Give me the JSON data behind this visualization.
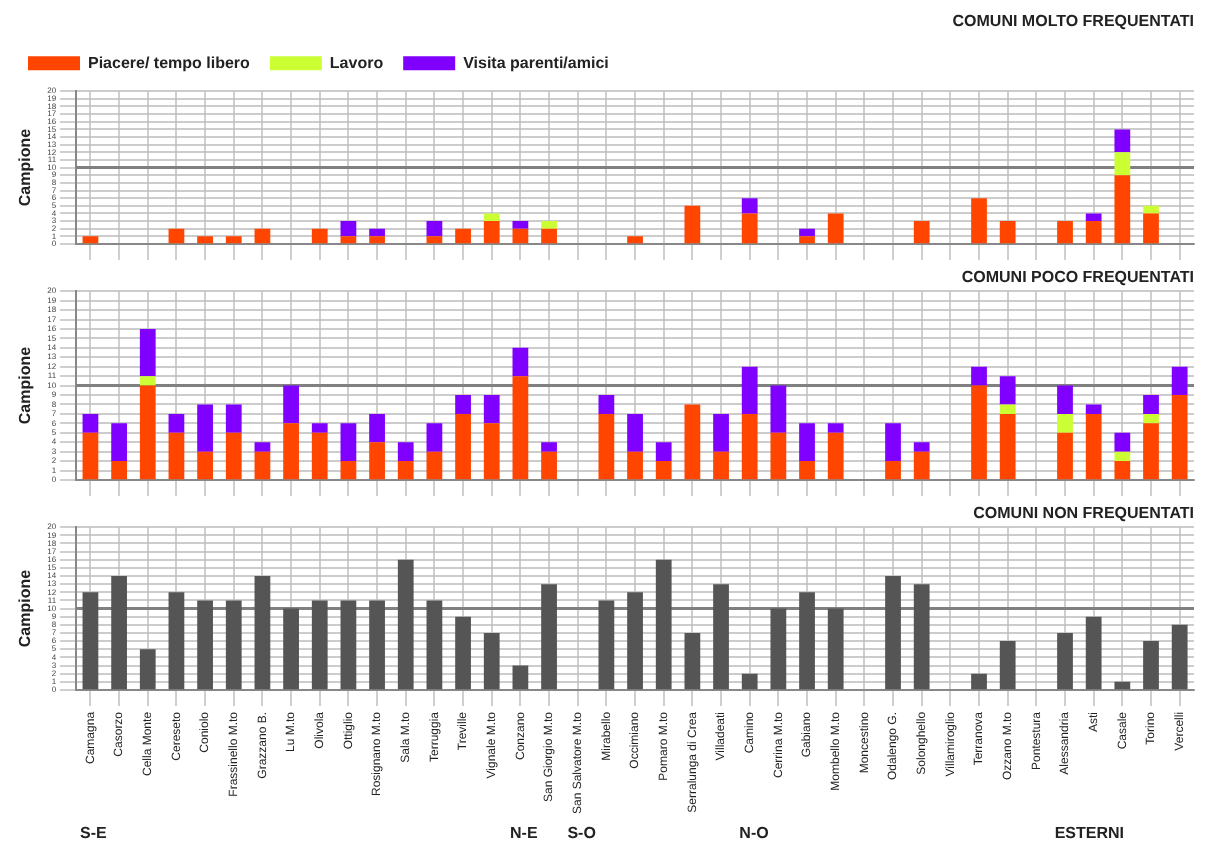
{
  "chart_data": [
    {
      "type": "bar",
      "title": "COMUNI MOLTO FREQUENTATI",
      "ylabel": "Campione",
      "stacked": true,
      "legend": "top",
      "grid": true,
      "tick_labels": "y",
      "ylim": [
        0,
        20
      ],
      "yticks": [
        0,
        1,
        2,
        3,
        4,
        5,
        6,
        7,
        8,
        9,
        10,
        11,
        12,
        13,
        14,
        15,
        16,
        17,
        18,
        19,
        20
      ],
      "ref_lines": [
        {
          "axis": "y",
          "value": 10,
          "color": "#808080"
        }
      ],
      "categories": [
        null,
        null,
        null,
        null,
        null,
        null,
        null,
        null,
        null,
        null,
        null,
        null,
        null,
        null,
        null,
        null,
        null,
        null,
        null,
        null,
        null,
        null,
        null,
        null,
        null,
        null,
        null,
        null,
        null,
        null,
        null,
        null,
        null,
        null,
        null,
        null,
        null,
        null,
        null
      ],
      "series": [
        {
          "name": "Piacere/ tempo libero",
          "color": "#ff4500",
          "values": [
            1,
            null,
            null,
            2,
            1,
            1,
            2,
            null,
            2,
            1,
            1,
            null,
            1,
            2,
            3,
            2,
            2,
            null,
            null,
            1,
            null,
            5,
            null,
            4,
            null,
            1,
            4,
            null,
            null,
            3,
            null,
            6,
            3,
            null,
            3,
            3,
            9,
            4,
            null
          ]
        },
        {
          "name": "Lavoro",
          "color": "#ccff33",
          "values": [
            null,
            null,
            null,
            null,
            null,
            null,
            null,
            null,
            null,
            null,
            null,
            null,
            null,
            null,
            1,
            null,
            1,
            null,
            null,
            null,
            null,
            null,
            null,
            null,
            null,
            null,
            null,
            null,
            null,
            null,
            null,
            null,
            null,
            null,
            null,
            null,
            3,
            1,
            null
          ]
        },
        {
          "name": "Visita parenti/amici",
          "color": "#7f00ff",
          "values": [
            null,
            null,
            null,
            null,
            null,
            null,
            null,
            null,
            null,
            2,
            1,
            null,
            2,
            null,
            null,
            1,
            null,
            null,
            null,
            null,
            null,
            null,
            null,
            2,
            null,
            1,
            null,
            null,
            null,
            null,
            null,
            null,
            null,
            null,
            null,
            1,
            3,
            null,
            null
          ]
        }
      ]
    },
    {
      "type": "bar",
      "title": "COMUNI POCO FREQUENTATI",
      "ylabel": "Campione",
      "stacked": true,
      "grid": true,
      "tick_labels": "y",
      "ylim": [
        0,
        20
      ],
      "yticks": [
        0,
        1,
        2,
        3,
        4,
        5,
        6,
        7,
        8,
        9,
        10,
        11,
        12,
        13,
        14,
        15,
        16,
        17,
        18,
        19,
        20
      ],
      "ref_lines": [
        {
          "axis": "y",
          "value": 10,
          "color": "#808080"
        }
      ],
      "categories": [
        null,
        null,
        null,
        null,
        null,
        null,
        null,
        null,
        null,
        null,
        null,
        null,
        null,
        null,
        null,
        null,
        null,
        null,
        null,
        null,
        null,
        null,
        null,
        null,
        null,
        null,
        null,
        null,
        null,
        null,
        null,
        null,
        null,
        null,
        null,
        null,
        null,
        null,
        null
      ],
      "series": [
        {
          "color": "#ff4500",
          "values": [
            5,
            2,
            10,
            5,
            3,
            5,
            3,
            6,
            5,
            2,
            4,
            2,
            3,
            7,
            6,
            11,
            3,
            null,
            7,
            3,
            2,
            8,
            3,
            7,
            5,
            2,
            5,
            null,
            2,
            3,
            null,
            10,
            7,
            null,
            5,
            7,
            2,
            6,
            9
          ]
        },
        {
          "color": "#ccff33",
          "values": [
            null,
            null,
            1,
            null,
            null,
            null,
            null,
            null,
            null,
            null,
            null,
            null,
            null,
            null,
            null,
            null,
            null,
            null,
            null,
            null,
            null,
            null,
            null,
            null,
            null,
            null,
            null,
            null,
            null,
            null,
            null,
            null,
            1,
            null,
            2,
            null,
            1,
            1,
            null
          ]
        },
        {
          "color": "#7f00ff",
          "values": [
            2,
            4,
            5,
            2,
            5,
            3,
            1,
            4,
            1,
            4,
            3,
            2,
            3,
            2,
            3,
            3,
            1,
            null,
            2,
            4,
            2,
            null,
            4,
            5,
            5,
            4,
            1,
            null,
            4,
            1,
            null,
            2,
            3,
            null,
            3,
            1,
            2,
            2,
            3
          ]
        }
      ]
    },
    {
      "type": "bar",
      "title": "COMUNI NON FREQUENTATI",
      "ylabel": "Campione",
      "grid": true,
      "ylim": [
        0,
        20
      ],
      "yticks": [
        0,
        1,
        2,
        3,
        4,
        5,
        6,
        7,
        8,
        9,
        10,
        11,
        12,
        13,
        14,
        15,
        16,
        17,
        18,
        19,
        20
      ],
      "ref_lines": [
        {
          "axis": "y",
          "value": 10,
          "color": "#808080"
        }
      ],
      "color": "#555555",
      "categories": [
        "Camagna",
        "Casorzo",
        "Cella Monte",
        "Cereseto",
        "Coniolo",
        "Frassinello M.to",
        "Grazzano B.",
        "Lu M.to",
        "Olivola",
        "Ottiglio",
        "Rosignano M.to",
        "Sala M.to",
        "Terruggia",
        "Treville",
        "Vignale M.to",
        "Conzano",
        "San Giorgio M.to",
        "San Salvatore M.to",
        "Mirabello",
        "Occimiano",
        "Pomaro M.to",
        "Serralunga di Crea",
        "Villadeati",
        "Camino",
        "Cerrina M.to",
        "Gabiano",
        "Mombello M.to",
        "Moncestino",
        "Odalengo G.",
        "Solonghello",
        "Villamiroglio",
        "Terranova",
        "Ozzano M.to",
        "Pontestura",
        "Alessandria",
        "Asti",
        "Casale",
        "Torino",
        "Vercelli"
      ],
      "values": [
        12,
        14,
        5,
        12,
        11,
        11,
        14,
        10,
        11,
        11,
        11,
        16,
        11,
        9,
        7,
        3,
        13,
        null,
        11,
        12,
        16,
        7,
        13,
        2,
        10,
        12,
        10,
        null,
        14,
        13,
        null,
        2,
        6,
        null,
        7,
        9,
        1,
        6,
        8
      ],
      "annotations": [
        "S-E",
        "N-E",
        "S-O",
        "N-O",
        "ESTERNI"
      ]
    }
  ]
}
